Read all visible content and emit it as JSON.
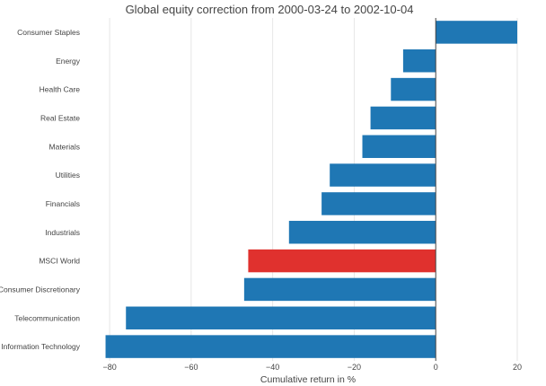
{
  "chart_data": {
    "type": "bar",
    "orientation": "horizontal",
    "title": "Global equity correction from 2000-03-24 to 2002-10-04",
    "xlabel": "Cumulative return in %",
    "ylabel": "",
    "xlim": [
      -82,
      20
    ],
    "xticks": [
      -80,
      -60,
      -40,
      -20,
      0,
      20
    ],
    "xtick_labels": [
      "−80",
      "−60",
      "−40",
      "−20",
      "0",
      "20"
    ],
    "grid": true,
    "legend": "none",
    "categories": [
      "Consumer Staples",
      "Energy",
      "Health Care",
      "Real Estate",
      "Materials",
      "Utilities",
      "Financials",
      "Industrials",
      "MSCI World",
      "Consumer Discretionary",
      "Telecommunication",
      "Information Technology"
    ],
    "values": [
      20,
      -8,
      -11,
      -16,
      -18,
      -26,
      -28,
      -36,
      -46,
      -47,
      -76,
      -81
    ],
    "colors": {
      "default": "#1f77b4",
      "highlight": "#e0312e",
      "highlight_category": "MSCI World"
    }
  }
}
